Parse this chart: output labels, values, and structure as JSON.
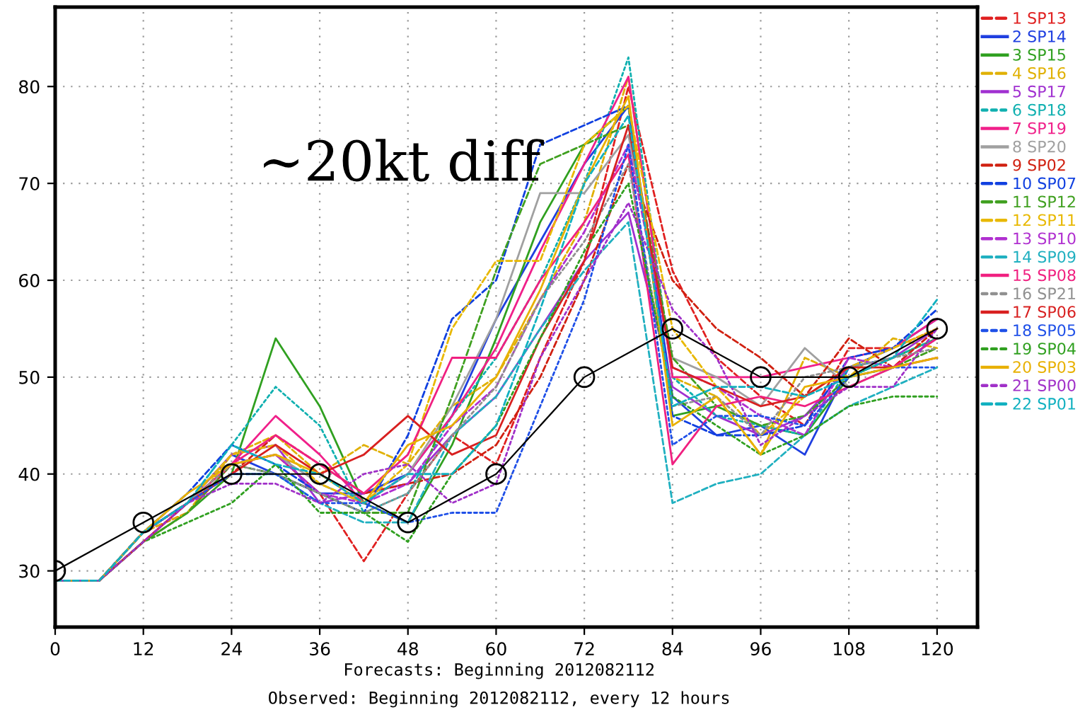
{
  "chart_data": {
    "type": "line",
    "x": [
      0,
      6,
      12,
      18,
      24,
      30,
      36,
      42,
      48,
      54,
      60,
      66,
      72,
      78,
      84,
      90,
      96,
      102,
      108,
      114,
      120
    ],
    "xlim": [
      0,
      125.5
    ],
    "ylim": [
      24.2,
      88.2
    ],
    "xticks": [
      0,
      12,
      24,
      36,
      48,
      60,
      72,
      84,
      96,
      108,
      120
    ],
    "yticks": [
      30,
      40,
      50,
      60,
      70,
      80
    ],
    "grid": true,
    "legend": "top right",
    "marker": "none",
    "annotations": [
      "~20kt diff",
      "Forecasts: Beginning 2012082112",
      "Observed: Beginning 2012082112, every 12 hours"
    ],
    "series": [
      {
        "name": "1 SP13",
        "color": "#e02020",
        "line_style": "dashed",
        "values": [
          29,
          29,
          34,
          36,
          41,
          42,
          38,
          31,
          38,
          44,
          41,
          52,
          62,
          80,
          61,
          52,
          48,
          45,
          53,
          53,
          55
        ]
      },
      {
        "name": "2 SP14",
        "color": "#1f3fe0",
        "line_style": "solid",
        "values": [
          29,
          29,
          34,
          37,
          42,
          40,
          38,
          38,
          40,
          46,
          56,
          64,
          72,
          78,
          48,
          44,
          45,
          42,
          51,
          53,
          56
        ]
      },
      {
        "name": "3 SP15",
        "color": "#30a020",
        "line_style": "solid",
        "values": [
          29,
          29,
          33,
          36,
          40,
          54,
          47,
          37,
          35,
          43,
          54,
          66,
          74,
          78,
          46,
          47,
          45,
          44,
          50,
          52,
          54
        ]
      },
      {
        "name": "4 SP16",
        "color": "#e0b000",
        "line_style": "dashed",
        "values": [
          29,
          29,
          34,
          36,
          42,
          44,
          40,
          43,
          41,
          47,
          50,
          58,
          66,
          81,
          50,
          48,
          42,
          52,
          50,
          54,
          53
        ]
      },
      {
        "name": "5 SP17",
        "color": "#a030d0",
        "line_style": "solid",
        "values": [
          29,
          29,
          33,
          37,
          42,
          43,
          37,
          38,
          39,
          44,
          48,
          55,
          62,
          67,
          49,
          46,
          44,
          46,
          51,
          52,
          55
        ]
      },
      {
        "name": "6 SP18",
        "color": "#10b0b0",
        "line_style": "dotted",
        "values": [
          29,
          29,
          34,
          37,
          43,
          49,
          45,
          36,
          38,
          46,
          52,
          60,
          70,
          83,
          50,
          46,
          45,
          44,
          51,
          52,
          54
        ]
      },
      {
        "name": "7 SP19",
        "color": "#f0208a",
        "line_style": "solid",
        "values": [
          29,
          29,
          33,
          37,
          41,
          46,
          42,
          37,
          40,
          46,
          53,
          63,
          72,
          81,
          50,
          50,
          50,
          51,
          52,
          53,
          56
        ]
      },
      {
        "name": "8 SP20",
        "color": "#a0a0a0",
        "line_style": "solid",
        "values": [
          29,
          29,
          34,
          37,
          41,
          42,
          39,
          37,
          40,
          47,
          56,
          69,
          69,
          75,
          52,
          50,
          47,
          53,
          49,
          51,
          54
        ]
      },
      {
        "name": "9 SP02",
        "color": "#d02010",
        "line_style": "dashed",
        "values": [
          29,
          29,
          34,
          37,
          40,
          44,
          41,
          38,
          39,
          40,
          43,
          50,
          60,
          72,
          60,
          55,
          52,
          48,
          54,
          51,
          55
        ]
      },
      {
        "name": "10 SP07",
        "color": "#1040e0",
        "line_style": "dashed",
        "values": [
          29,
          29,
          34,
          38,
          43,
          41,
          38,
          36,
          44,
          56,
          60,
          74,
          76,
          78,
          46,
          44,
          44,
          45,
          52,
          53,
          57
        ]
      },
      {
        "name": "11 SP12",
        "color": "#40a020",
        "line_style": "dashed",
        "values": [
          29,
          29,
          33,
          36,
          41,
          40,
          38,
          36,
          36,
          48,
          61,
          72,
          74,
          76,
          52,
          47,
          45,
          46,
          50,
          51,
          53
        ]
      },
      {
        "name": "12 SP11",
        "color": "#e8b800",
        "line_style": "dashed",
        "values": [
          29,
          29,
          34,
          37,
          42,
          43,
          39,
          37,
          41,
          55,
          62,
          62,
          74,
          78,
          55,
          49,
          44,
          48,
          51,
          53,
          55
        ]
      },
      {
        "name": "13 SP10",
        "color": "#b030d0",
        "line_style": "dashed",
        "values": [
          29,
          29,
          33,
          37,
          41,
          42,
          38,
          37,
          39,
          45,
          49,
          58,
          65,
          74,
          51,
          49,
          46,
          44,
          52,
          51,
          54
        ]
      },
      {
        "name": "14 SP09",
        "color": "#20b0c0",
        "line_style": "dashed",
        "values": [
          29,
          29,
          34,
          37,
          40,
          40,
          37,
          35,
          35,
          44,
          48,
          55,
          61,
          66,
          37,
          39,
          40,
          44,
          47,
          49,
          51
        ]
      },
      {
        "name": "15 SP08",
        "color": "#f02080",
        "line_style": "solid",
        "values": [
          29,
          29,
          34,
          37,
          41,
          44,
          41,
          38,
          42,
          52,
          52,
          60,
          66,
          73,
          41,
          47,
          48,
          47,
          49,
          51,
          54
        ]
      },
      {
        "name": "16 SP21",
        "color": "#909090",
        "line_style": "dotted",
        "values": [
          29,
          29,
          34,
          37,
          41,
          40,
          38,
          36,
          38,
          44,
          49,
          58,
          64,
          72,
          47,
          48,
          44,
          50,
          51,
          52,
          53
        ]
      },
      {
        "name": "17 SP06",
        "color": "#d82020",
        "line_style": "solid",
        "values": [
          29,
          29,
          33,
          37,
          40,
          43,
          40,
          42,
          46,
          42,
          44,
          54,
          62,
          76,
          51,
          49,
          47,
          48,
          51,
          51,
          52
        ]
      },
      {
        "name": "18 SP05",
        "color": "#1f50e8",
        "line_style": "dotted",
        "values": [
          29,
          29,
          34,
          37,
          40,
          40,
          37,
          37,
          35,
          36,
          36,
          47,
          58,
          74,
          43,
          46,
          46,
          45,
          50,
          51,
          51
        ]
      },
      {
        "name": "19 SP04",
        "color": "#30a020",
        "line_style": "dotted",
        "values": [
          29,
          29,
          33,
          35,
          37,
          41,
          36,
          36,
          33,
          40,
          45,
          54,
          63,
          70,
          48,
          45,
          42,
          44,
          47,
          48,
          48
        ]
      },
      {
        "name": "20 SP03",
        "color": "#e8b000",
        "line_style": "solid",
        "values": [
          29,
          29,
          34,
          38,
          41,
          42,
          40,
          37,
          43,
          45,
          50,
          59,
          70,
          79,
          45,
          48,
          42,
          49,
          50,
          51,
          52
        ]
      },
      {
        "name": "21 SP00",
        "color": "#a030c8",
        "line_style": "dotted",
        "values": [
          29,
          29,
          33,
          37,
          39,
          39,
          37,
          40,
          41,
          37,
          39,
          52,
          60,
          68,
          57,
          52,
          43,
          46,
          49,
          49,
          55
        ]
      },
      {
        "name": "22 SP01",
        "color": "#10b0c0",
        "line_style": "dashed",
        "values": [
          29,
          29,
          34,
          37,
          43,
          41,
          40,
          37,
          40,
          40,
          45,
          57,
          70,
          77,
          47,
          49,
          49,
          48,
          50,
          52,
          58
        ]
      },
      {
        "color": "#000000",
        "line_style": "solid",
        "marker": "circle",
        "x": [
          0,
          12,
          24,
          36,
          48,
          60,
          72,
          84,
          96,
          108,
          120
        ],
        "values": [
          30,
          35,
          40,
          40,
          35,
          40,
          50,
          55,
          50,
          50,
          55
        ]
      }
    ]
  }
}
